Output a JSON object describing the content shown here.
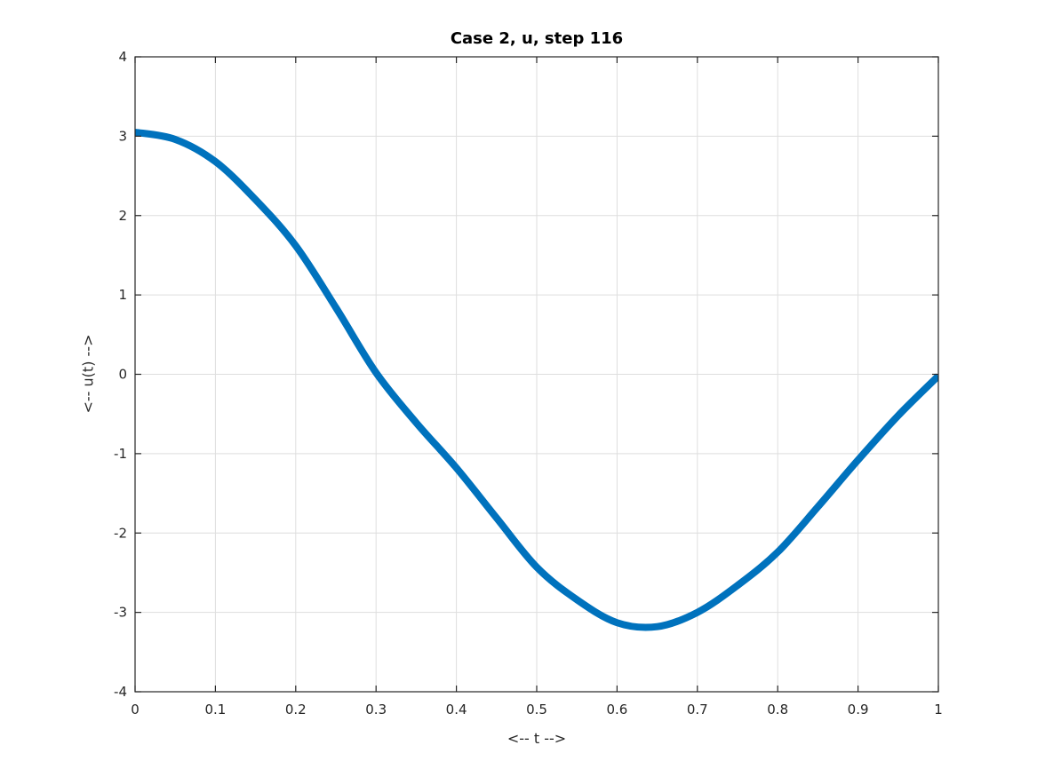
{
  "chart_data": {
    "type": "line",
    "title": "Case 2, u, step 116",
    "xlabel": "<-- t -->",
    "ylabel": "<-- u(t) -->",
    "xlim": [
      0,
      1
    ],
    "ylim": [
      -4,
      4
    ],
    "xtick_values": [
      0,
      0.1,
      0.2,
      0.3,
      0.4,
      0.5,
      0.6,
      0.7,
      0.8,
      0.9,
      1
    ],
    "xtick_labels": [
      "0",
      "0.1",
      "0.2",
      "0.3",
      "0.4",
      "0.5",
      "0.6",
      "0.7",
      "0.8",
      "0.9",
      "1"
    ],
    "ytick_values": [
      -4,
      -3,
      -2,
      -1,
      0,
      1,
      2,
      3,
      4
    ],
    "ytick_labels": [
      "-4",
      "-3",
      "-2",
      "-1",
      "0",
      "1",
      "2",
      "3",
      "4"
    ],
    "grid": true,
    "legend": null,
    "series": [
      {
        "name": "u",
        "color": "#0072BD",
        "line_width": 8,
        "x": [
          0,
          0.05,
          0.1,
          0.15,
          0.2,
          0.25,
          0.3,
          0.35,
          0.4,
          0.45,
          0.5,
          0.55,
          0.6,
          0.65,
          0.7,
          0.75,
          0.8,
          0.85,
          0.9,
          0.95,
          1
        ],
        "y": [
          3.05,
          2.96,
          2.68,
          2.2,
          1.62,
          0.84,
          0.02,
          -0.61,
          -1.18,
          -1.81,
          -2.43,
          -2.84,
          -3.13,
          -3.18,
          -3.0,
          -2.66,
          -2.24,
          -1.67,
          -1.08,
          -0.52,
          -0.02
        ]
      }
    ],
    "annotations": {
      "start_value": 3.05,
      "min_point": {
        "t": 0.64,
        "u": -3.18
      },
      "end_value": -0.02
    }
  },
  "colors": {
    "background": "#ffffff",
    "axis": "#262626",
    "grid": "#dedede",
    "title": "#000000",
    "line": "#0072BD"
  }
}
